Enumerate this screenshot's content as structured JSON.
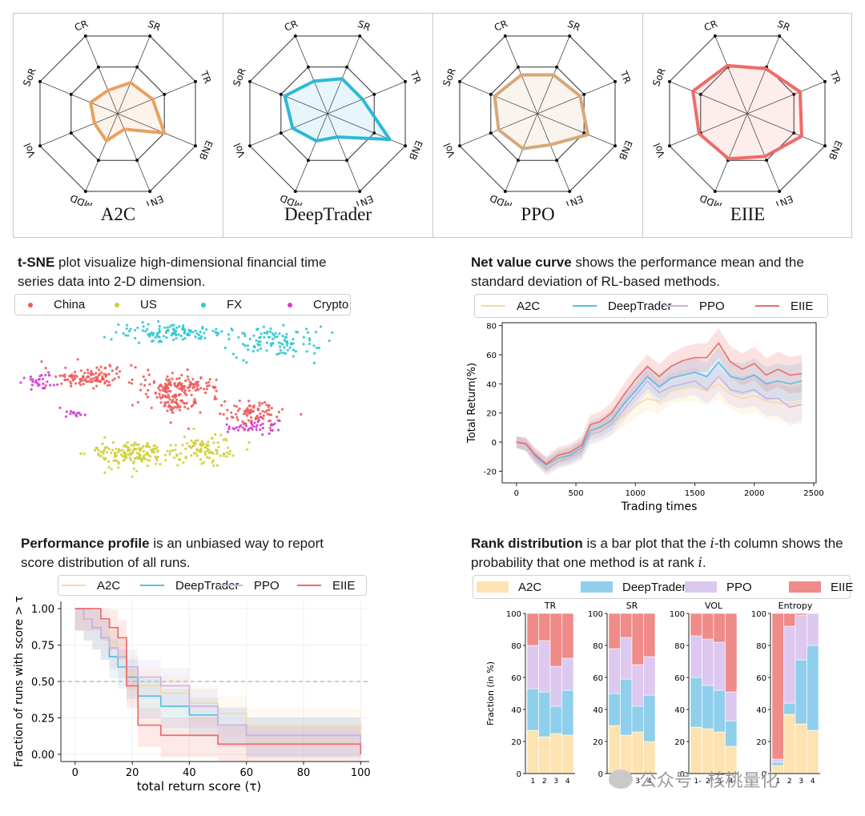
{
  "radar": {
    "axes": [
      "CR",
      "SR",
      "TR",
      "ENB",
      "ENT",
      "MDD",
      "Vol",
      "SoR"
    ],
    "colors": {
      "A2C": "#e8a161",
      "DeepTrader": "#2fb8d6",
      "PPO": "#d6a87a",
      "EIIE": "#ef6b68"
    }
  },
  "captions": {
    "tsne_bold": "t-SNE",
    "tsne_rest": " plot visualize high-dimensional financial time series data into 2-D dimension.",
    "net_bold": "Net value curve",
    "net_rest": " shows the performance mean and the standard deviation of RL-based methods.",
    "perf_bold": "Performance profile",
    "perf_rest": " is an unbiased way to report score distribution of all runs.",
    "rank_bold": "Rank distribution",
    "rank_rest_1": " is a bar plot that the ",
    "rank_i": "i",
    "rank_rest_2": "-th column shows the probability that one method is at rank ",
    "rank_i2": "i",
    "rank_end": "."
  },
  "tsne_legend": [
    {
      "label": "China",
      "color": "#ef5b5b"
    },
    {
      "label": "US",
      "color": "#cfcf3a"
    },
    {
      "label": "FX",
      "color": "#2ec8cf"
    },
    {
      "label": "Crypto",
      "color": "#d43bd4"
    }
  ],
  "method_legend": [
    {
      "label": "A2C",
      "color": "#f7d9a0"
    },
    {
      "label": "DeepTrader",
      "color": "#5bbde4"
    },
    {
      "label": "PPO",
      "color": "#cdb1e6"
    },
    {
      "label": "EIIE",
      "color": "#ef6b68"
    }
  ],
  "rank_legend": [
    {
      "label": "A2C",
      "color": "#fde3b2"
    },
    {
      "label": "DeepTrader",
      "color": "#8fcfec"
    },
    {
      "label": "PPO",
      "color": "#ddc8ef"
    },
    {
      "label": "EIIE",
      "color": "#ef8b89"
    }
  ],
  "watermark": "公众号 · 核桃量化",
  "chart_data": [
    {
      "type": "radar",
      "title": "A2C",
      "axes": [
        "CR",
        "SR",
        "TR",
        "ENB",
        "ENT",
        "MDD",
        "Vol",
        "SoR"
      ],
      "values": [
        0.3,
        0.4,
        0.45,
        0.6,
        0.2,
        0.35,
        0.3,
        0.35
      ]
    },
    {
      "type": "radar",
      "title": "DeepTrader",
      "axes": [
        "CR",
        "SR",
        "TR",
        "ENB",
        "ENT",
        "MDD",
        "Vol",
        "SoR"
      ],
      "values": [
        0.42,
        0.45,
        0.45,
        0.8,
        0.3,
        0.35,
        0.45,
        0.55
      ]
    },
    {
      "type": "radar",
      "title": "PPO",
      "axes": [
        "CR",
        "SR",
        "TR",
        "ENB",
        "ENT",
        "MDD",
        "Vol",
        "SoR"
      ],
      "values": [
        0.5,
        0.5,
        0.55,
        0.65,
        0.4,
        0.45,
        0.5,
        0.55
      ]
    },
    {
      "type": "radar",
      "title": "EIIE",
      "axes": [
        "CR",
        "SR",
        "TR",
        "ENB",
        "ENT",
        "MDD",
        "Vol",
        "SoR"
      ],
      "values": [
        0.62,
        0.58,
        0.68,
        0.7,
        0.55,
        0.58,
        0.62,
        0.7
      ]
    },
    {
      "type": "scatter",
      "title": "t-SNE",
      "clusters": [
        {
          "name": "China",
          "color": "#ef5b5b",
          "groups": [
            [
              -0.55,
              0.35,
              0.28,
              0.12,
              120
            ],
            [
              0.0,
              0.25,
              0.22,
              0.12,
              130
            ],
            [
              0.42,
              -0.05,
              0.18,
              0.14,
              90
            ],
            [
              -0.05,
              0.05,
              0.18,
              0.1,
              60
            ]
          ]
        },
        {
          "name": "US",
          "color": "#cfcf3a",
          "groups": [
            [
              -0.3,
              -0.5,
              0.25,
              0.16,
              160
            ],
            [
              0.15,
              -0.45,
              0.18,
              0.16,
              90
            ]
          ]
        },
        {
          "name": "FX",
          "color": "#2ec8cf",
          "groups": [
            [
              -0.1,
              0.85,
              0.3,
              0.1,
              110
            ],
            [
              0.55,
              0.75,
              0.3,
              0.18,
              110
            ]
          ]
        },
        {
          "name": "Crypto",
          "color": "#d43bd4",
          "groups": [
            [
              -0.85,
              0.3,
              0.1,
              0.1,
              30
            ],
            [
              0.4,
              -0.2,
              0.2,
              0.08,
              40
            ],
            [
              -0.65,
              -0.05,
              0.08,
              0.05,
              14
            ]
          ]
        }
      ]
    },
    {
      "type": "line",
      "title": "Net value curve",
      "xlabel": "Trading times",
      "ylabel": "Total Return(%)",
      "xlim": [
        -120,
        2520
      ],
      "ylim": [
        -28,
        82
      ],
      "xticks": [
        0,
        500,
        1000,
        1500,
        2000,
        2500
      ],
      "yticks": [
        -20,
        0,
        20,
        40,
        60,
        80
      ],
      "series": [
        {
          "name": "A2C",
          "color": "#f7d9a0",
          "x": [
            0,
            80,
            150,
            250,
            350,
            450,
            550,
            620,
            700,
            800,
            900,
            1000,
            1100,
            1200,
            1300,
            1400,
            1500,
            1600,
            1700,
            1800,
            1900,
            2000,
            2100,
            2200,
            2300,
            2400
          ],
          "y": [
            0,
            -2,
            -10,
            -17,
            -12,
            -10,
            -5,
            5,
            8,
            12,
            18,
            25,
            30,
            28,
            35,
            37,
            38,
            35,
            40,
            33,
            30,
            32,
            28,
            27,
            26,
            28
          ]
        },
        {
          "name": "DeepTrader",
          "color": "#5bbde4",
          "x": [
            0,
            80,
            150,
            250,
            350,
            450,
            550,
            620,
            700,
            800,
            900,
            1000,
            1100,
            1200,
            1300,
            1400,
            1500,
            1600,
            1700,
            1800,
            1900,
            2000,
            2100,
            2200,
            2300,
            2400
          ],
          "y": [
            0,
            -2,
            -9,
            -16,
            -11,
            -9,
            -4,
            8,
            10,
            15,
            26,
            35,
            45,
            38,
            44,
            46,
            48,
            45,
            55,
            45,
            43,
            46,
            40,
            42,
            40,
            42
          ]
        },
        {
          "name": "PPO",
          "color": "#cdb1e6",
          "x": [
            0,
            80,
            150,
            250,
            350,
            450,
            550,
            620,
            700,
            800,
            900,
            1000,
            1100,
            1200,
            1300,
            1400,
            1500,
            1600,
            1700,
            1800,
            1900,
            2000,
            2100,
            2200,
            2300,
            2400
          ],
          "y": [
            0,
            -2,
            -10,
            -18,
            -13,
            -10,
            -6,
            5,
            7,
            12,
            22,
            32,
            42,
            34,
            38,
            40,
            42,
            36,
            45,
            36,
            34,
            36,
            30,
            30,
            24,
            26
          ]
        },
        {
          "name": "EIIE",
          "color": "#ef6b68",
          "x": [
            0,
            80,
            150,
            250,
            350,
            450,
            550,
            620,
            700,
            800,
            900,
            1000,
            1100,
            1200,
            1300,
            1400,
            1500,
            1600,
            1700,
            1800,
            1900,
            2000,
            2100,
            2200,
            2300,
            2400
          ],
          "y": [
            0,
            -1,
            -8,
            -15,
            -9,
            -7,
            -2,
            12,
            14,
            20,
            32,
            43,
            52,
            45,
            52,
            56,
            58,
            58,
            68,
            55,
            50,
            54,
            46,
            50,
            46,
            47
          ]
        }
      ]
    },
    {
      "type": "line",
      "title": "Performance profile",
      "xlabel": "total return score (τ)",
      "ylabel": "Fraction of runs with score > τ",
      "xlim": [
        -5,
        103
      ],
      "ylim": [
        -0.05,
        1.05
      ],
      "xticks": [
        0,
        20,
        40,
        60,
        80,
        100
      ],
      "yticks": [
        0.0,
        0.25,
        0.5,
        0.75,
        1.0
      ],
      "reference_line": 0.5,
      "series": [
        {
          "name": "A2C",
          "color": "#f7d9a0",
          "x": [
            0,
            3,
            6,
            9,
            12,
            15,
            18,
            22,
            30,
            40,
            50,
            60,
            100
          ],
          "y": [
            1.0,
            0.94,
            0.87,
            0.8,
            0.75,
            0.67,
            0.55,
            0.47,
            0.42,
            0.35,
            0.28,
            0.2,
            0.13
          ]
        },
        {
          "name": "DeepTrader",
          "color": "#5bbde4",
          "x": [
            0,
            3,
            6,
            9,
            12,
            15,
            18,
            22,
            30,
            40,
            50,
            60,
            100
          ],
          "y": [
            1.0,
            0.93,
            0.87,
            0.8,
            0.67,
            0.6,
            0.53,
            0.4,
            0.33,
            0.27,
            0.2,
            0.13,
            0.13
          ]
        },
        {
          "name": "PPO",
          "color": "#cdb1e6",
          "x": [
            0,
            3,
            6,
            9,
            12,
            15,
            18,
            22,
            30,
            40,
            50,
            60,
            100
          ],
          "y": [
            1.0,
            0.93,
            0.87,
            0.8,
            0.73,
            0.67,
            0.6,
            0.53,
            0.47,
            0.33,
            0.2,
            0.13,
            0.07
          ]
        },
        {
          "name": "EIIE",
          "color": "#ef6b68",
          "x": [
            0,
            3,
            6,
            9,
            12,
            15,
            18,
            22,
            30,
            40,
            50,
            60,
            100
          ],
          "y": [
            1.0,
            1.0,
            1.0,
            0.93,
            0.87,
            0.8,
            0.47,
            0.2,
            0.13,
            0.13,
            0.07,
            0.07,
            0.0
          ]
        }
      ]
    },
    {
      "type": "bar",
      "title": "Rank distribution",
      "ylabel": "Fraction (in %)",
      "stacked": true,
      "categories": [
        "1",
        "2",
        "3",
        "4"
      ],
      "yticks": [
        0,
        20,
        40,
        60,
        80,
        100
      ],
      "ylim": [
        0,
        100
      ],
      "panels": [
        {
          "title": "TR",
          "series": [
            {
              "name": "A2C",
              "values": [
                27,
                23,
                25,
                24
              ]
            },
            {
              "name": "DeepTrader",
              "values": [
                26,
                28,
                17,
                28
              ]
            },
            {
              "name": "PPO",
              "values": [
                27,
                32,
                25,
                20
              ]
            },
            {
              "name": "EIIE",
              "values": [
                20,
                17,
                33,
                28
              ]
            }
          ]
        },
        {
          "title": "SR",
          "series": [
            {
              "name": "A2C",
              "values": [
                30,
                24,
                26,
                20
              ]
            },
            {
              "name": "DeepTrader",
              "values": [
                20,
                35,
                16,
                29
              ]
            },
            {
              "name": "PPO",
              "values": [
                28,
                26,
                26,
                24
              ]
            },
            {
              "name": "EIIE",
              "values": [
                22,
                15,
                32,
                27
              ]
            }
          ]
        },
        {
          "title": "VOL",
          "series": [
            {
              "name": "A2C",
              "values": [
                29,
                28,
                26,
                17
              ]
            },
            {
              "name": "DeepTrader",
              "values": [
                31,
                27,
                26,
                16
              ]
            },
            {
              "name": "PPO",
              "values": [
                26,
                29,
                30,
                18
              ]
            },
            {
              "name": "EIIE",
              "values": [
                14,
                16,
                18,
                49
              ]
            }
          ]
        },
        {
          "title": "Entropy",
          "series": [
            {
              "name": "A2C",
              "values": [
                5,
                37,
                31,
                27
              ]
            },
            {
              "name": "DeepTrader",
              "values": [
                2,
                7,
                40,
                53
              ]
            },
            {
              "name": "PPO",
              "values": [
                2,
                48,
                28,
                20
              ]
            },
            {
              "name": "EIIE",
              "values": [
                91,
                8,
                1,
                0
              ]
            }
          ]
        }
      ]
    }
  ]
}
